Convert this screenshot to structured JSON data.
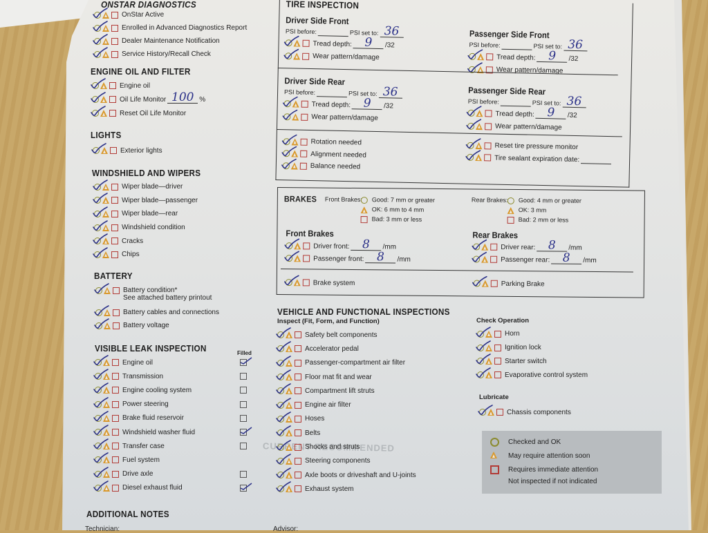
{
  "colors": {
    "ok": "#8b8b2e",
    "attention": "#d9982b",
    "immediate": "#b23b36",
    "ink": "#2c3289",
    "paper": "#e3e4e3",
    "desk": "#c6a464"
  },
  "default_mark": "checked-ok",
  "onstar": {
    "heading": "ONSTAR DIAGNOSTICS",
    "items": [
      {
        "label": "OnStar Active"
      },
      {
        "label": "Enrolled in Advanced Diagnostics Report"
      },
      {
        "label": "Dealer Maintenance Notification"
      },
      {
        "label": "Service History/Recall Check"
      }
    ]
  },
  "engine_oil": {
    "heading": "ENGINE OIL AND FILTER",
    "items": [
      {
        "label": "Engine oil"
      },
      {
        "label": "Oil Life Monitor",
        "value": "100",
        "suffix": "%"
      },
      {
        "label": "Reset Oil Life Monitor"
      }
    ]
  },
  "lights": {
    "heading": "LIGHTS",
    "items": [
      {
        "label": "Exterior lights"
      }
    ]
  },
  "windshield": {
    "heading": "WINDSHIELD AND WIPERS",
    "items": [
      {
        "label": "Wiper blade—driver"
      },
      {
        "label": "Wiper blade—passenger"
      },
      {
        "label": "Wiper blade—rear"
      },
      {
        "label": "Windshield condition"
      },
      {
        "label": "Cracks"
      },
      {
        "label": "Chips"
      }
    ]
  },
  "battery": {
    "heading": "BATTERY",
    "items": [
      {
        "label": "Battery condition*",
        "note": "See attached battery printout"
      },
      {
        "label": "Battery cables and connections"
      },
      {
        "label": "Battery voltage"
      }
    ]
  },
  "leak": {
    "heading": "VISIBLE LEAK INSPECTION",
    "filled_label": "Filled",
    "items": [
      {
        "label": "Engine oil"
      },
      {
        "label": "Transmission"
      },
      {
        "label": "Engine cooling system"
      },
      {
        "label": "Power steering"
      },
      {
        "label": "Brake fluid reservoir"
      },
      {
        "label": "Windshield washer fluid"
      },
      {
        "label": "Transfer case"
      },
      {
        "label": "Fuel system"
      },
      {
        "label": "Drive axle"
      },
      {
        "label": "Diesel exhaust fluid"
      }
    ],
    "filled": [
      true,
      false,
      false,
      false,
      false,
      true,
      false,
      null,
      false,
      true
    ]
  },
  "notes": {
    "heading": "ADDITIONAL NOTES",
    "technician_label": "Technician:",
    "advisor_label": "Advisor:"
  },
  "tire": {
    "heading": "TIRE INSPECTION",
    "driver_front": {
      "title": "Driver Side Front",
      "psi_before": "PSI before:",
      "psi_set": "PSI set to:",
      "psi_value": "36",
      "items": [
        {
          "label": "Tread depth:",
          "value": "9",
          "suffix": "/32"
        },
        {
          "label": "Wear pattern/damage"
        }
      ]
    },
    "passenger_front": {
      "title": "Passenger Side Front",
      "psi_before": "PSI before:",
      "psi_set": "PSI set to:",
      "psi_value": "36",
      "items": [
        {
          "label": "Tread depth:",
          "value": "9",
          "suffix": "/32"
        },
        {
          "label": "Wear pattern/damage"
        }
      ]
    },
    "driver_rear": {
      "title": "Driver Side Rear",
      "psi_before": "PSI before:",
      "psi_set": "PSI set to:",
      "psi_value": "36",
      "items": [
        {
          "label": "Tread depth:",
          "value": "9",
          "suffix": "/32"
        },
        {
          "label": "Wear pattern/damage"
        }
      ]
    },
    "passenger_rear": {
      "title": "Passenger Side Rear",
      "psi_before": "PSI before:",
      "psi_set": "PSI set to:",
      "psi_value": "36",
      "items": [
        {
          "label": "Tread depth:",
          "value": "9",
          "suffix": "/32"
        },
        {
          "label": "Wear pattern/damage"
        }
      ]
    },
    "left_items": [
      {
        "label": "Rotation needed"
      },
      {
        "label": "Alignment needed"
      },
      {
        "label": "Balance needed"
      }
    ],
    "right_items": [
      {
        "label": "Reset tire pressure monitor"
      },
      {
        "label": "Tire sealant expiration date:",
        "value": ""
      }
    ]
  },
  "brakes": {
    "heading": "BRAKES",
    "front_legend": {
      "label": "Front Brakes:",
      "good": "Good: 7 mm or greater",
      "ok": "OK: 6 mm to 4 mm",
      "bad": "Bad: 3 mm or less"
    },
    "rear_legend": {
      "label": "Rear Brakes:",
      "good": "Good: 4 mm or greater",
      "ok": "OK: 3 mm",
      "bad": "Bad: 2 mm or less"
    },
    "front": {
      "title": "Front Brakes",
      "items": [
        {
          "label": "Driver front:",
          "value": "8",
          "suffix": "/mm"
        },
        {
          "label": "Passenger front:",
          "value": "8",
          "suffix": "/mm"
        }
      ]
    },
    "rear": {
      "title": "Rear Brakes",
      "items": [
        {
          "label": "Driver rear:",
          "value": "8",
          "suffix": "/mm"
        },
        {
          "label": "Passenger rear:",
          "value": "8",
          "suffix": "/mm"
        }
      ]
    },
    "system_left": [
      {
        "label": "Brake system"
      }
    ],
    "system_right": [
      {
        "label": "Parking Brake"
      }
    ]
  },
  "vehicle": {
    "heading": "VEHICLE AND FUNCTIONAL INSPECTIONS",
    "subheading": "Inspect (Fit, Form, and Function)",
    "items": [
      {
        "label": "Safety belt components"
      },
      {
        "label": "Accelerator pedal"
      },
      {
        "label": "Passenger-compartment air filter"
      },
      {
        "label": "Floor mat fit and wear"
      },
      {
        "label": "Compartment lift struts"
      },
      {
        "label": "Engine air filter"
      },
      {
        "label": "Hoses"
      },
      {
        "label": "Belts"
      },
      {
        "label": "Shocks and struts"
      },
      {
        "label": "Steering components"
      },
      {
        "label": "Axle boots or driveshaft and U-joints"
      },
      {
        "label": "Exhaust system"
      }
    ]
  },
  "check_operation": {
    "heading": "Check Operation",
    "items": [
      {
        "label": "Horn"
      },
      {
        "label": "Ignition lock"
      },
      {
        "label": "Starter switch"
      },
      {
        "label": "Evaporative control system"
      }
    ]
  },
  "lubricate": {
    "heading": "Lubricate",
    "items": [
      {
        "label": "Chassis components"
      }
    ]
  },
  "legend": {
    "ok": "Checked and OK",
    "attention": "May require attention soon",
    "immediate": "Requires immediate attention",
    "none": "Not inspected if not indicated"
  },
  "faded_text": "CURRENT RECOMMENDED"
}
